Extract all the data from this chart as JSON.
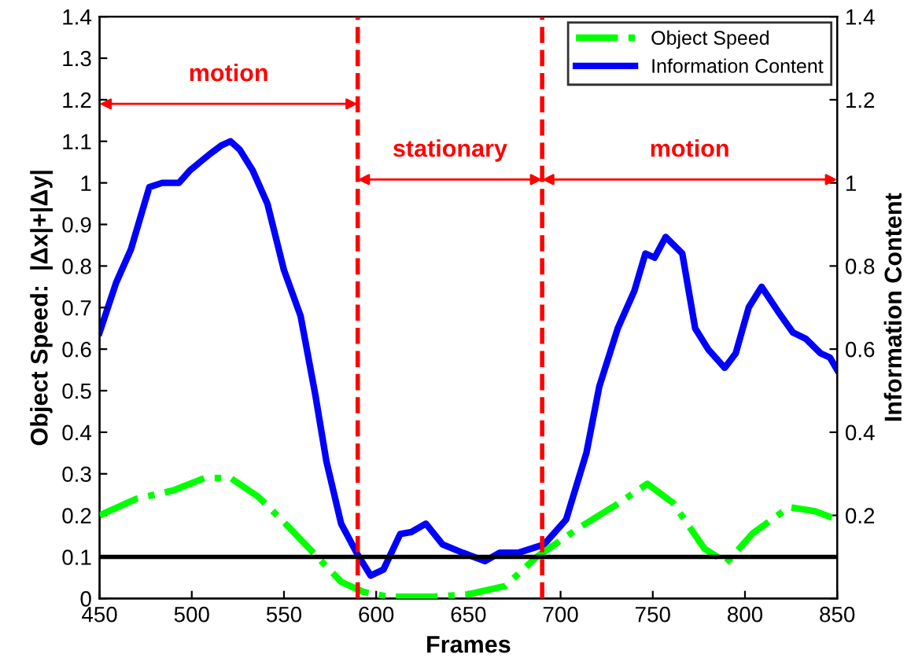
{
  "chart_data": {
    "type": "line",
    "xlabel": "Frames",
    "ylabel": "Object Speed:  |Δx|+|Δy|",
    "y2label": "Information Content",
    "xlim": [
      450,
      850
    ],
    "xticks": [
      450,
      500,
      550,
      600,
      650,
      700,
      750,
      800,
      850
    ],
    "ylim": [
      0,
      1.4
    ],
    "yticks": [
      0,
      0.1,
      0.2,
      0.3,
      0.4,
      0.5,
      0.6,
      0.7,
      0.8,
      0.9,
      1,
      1.1,
      1.2,
      1.3,
      1.4
    ],
    "y2lim": [
      0,
      1.4
    ],
    "y2ticks": [
      {
        "value": 0,
        "label": null
      },
      0.2,
      0.4,
      0.6,
      0.8,
      1,
      1.2,
      1.4
    ],
    "legend": "top right",
    "grid": false,
    "series": [
      {
        "name": "Object Speed",
        "color": "#00ff00",
        "line_style": "dashdot",
        "x": [
          450,
          470,
          490,
          507,
          521,
          536,
          553,
          567,
          581,
          593,
          607,
          630,
          650,
          670,
          687,
          710,
          730,
          747,
          761,
          778,
          790,
          804,
          824,
          838,
          850
        ],
        "values": [
          0.2,
          0.24,
          0.26,
          0.29,
          0.29,
          0.245,
          0.17,
          0.105,
          0.04,
          0.016,
          0.004,
          0.004,
          0.01,
          0.03,
          0.1,
          0.17,
          0.225,
          0.276,
          0.23,
          0.12,
          0.086,
          0.156,
          0.22,
          0.21,
          0.19
        ]
      },
      {
        "name": "Information Content",
        "color": "#0000ff",
        "line_style": "solid",
        "axis": "y2",
        "x": [
          450,
          459,
          467,
          477,
          484,
          493,
          499,
          510,
          516,
          521,
          526,
          533,
          541,
          550,
          559,
          567,
          573,
          581,
          590,
          597,
          604,
          613,
          619,
          627,
          636,
          647,
          659,
          667,
          677,
          691,
          703,
          714,
          721,
          731,
          740,
          746,
          751,
          757,
          766,
          773,
          780,
          789,
          795,
          802,
          809,
          818,
          826,
          833,
          841,
          846,
          850
        ],
        "values": [
          0.64,
          0.76,
          0.84,
          0.99,
          1.0,
          1.0,
          1.03,
          1.07,
          1.09,
          1.1,
          1.08,
          1.03,
          0.95,
          0.79,
          0.68,
          0.49,
          0.33,
          0.18,
          0.105,
          0.055,
          0.07,
          0.155,
          0.16,
          0.18,
          0.13,
          0.11,
          0.09,
          0.11,
          0.11,
          0.13,
          0.19,
          0.35,
          0.51,
          0.65,
          0.74,
          0.83,
          0.82,
          0.87,
          0.83,
          0.65,
          0.6,
          0.555,
          0.59,
          0.7,
          0.75,
          0.69,
          0.64,
          0.625,
          0.59,
          0.58,
          0.55
        ]
      }
    ],
    "ref_lines": [
      {
        "axis": "x",
        "value": 590,
        "color": "#ff0000",
        "line_style": "dashed"
      },
      {
        "axis": "x",
        "value": 690,
        "color": "#ff0000",
        "line_style": "dashed"
      },
      {
        "axis": "y",
        "value": 0.1,
        "color": "#000000",
        "line_style": "solid"
      }
    ],
    "annotations": [
      "motion",
      "stationary",
      "motion"
    ]
  }
}
